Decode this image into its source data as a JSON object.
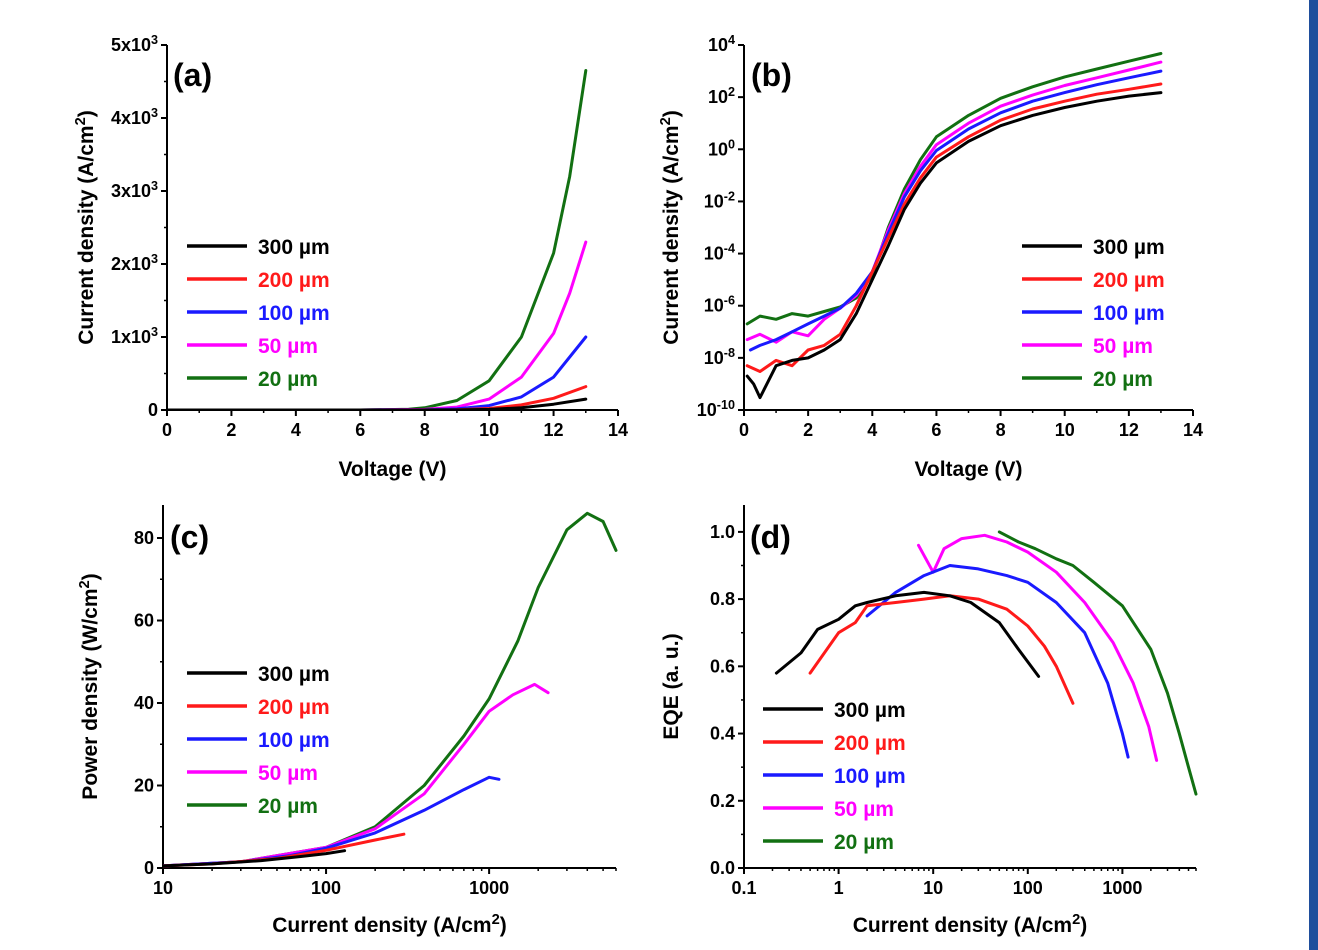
{
  "colors": {
    "300 µm": "#000000",
    "200 µm": "#ff1a1a",
    "100 µm": "#1a1aff",
    "50 µm": "#ff00ff",
    "20 µm": "#127012",
    "accent_bar": "#1f4e9c"
  },
  "chart_data": [
    {
      "panel": "(a)",
      "type": "line",
      "xlabel": "Voltage (V)",
      "ylabel": "Current density (A/cm²)",
      "xlim": [
        0,
        14
      ],
      "ylim": [
        0,
        5000
      ],
      "xticks": [
        "0",
        "2",
        "4",
        "6",
        "8",
        "10",
        "12",
        "14"
      ],
      "yticks": [
        "0",
        "1x10³",
        "2x10³",
        "3x10³",
        "4x10³",
        "5x10³"
      ],
      "legend_position": "center-left",
      "series": [
        {
          "name": "300 µm",
          "x": [
            0,
            6,
            8,
            9,
            10,
            11,
            12,
            13
          ],
          "y": [
            0,
            0,
            0,
            2,
            8,
            30,
            80,
            150
          ]
        },
        {
          "name": "200 µm",
          "x": [
            0,
            6,
            8,
            9,
            10,
            11,
            12,
            13
          ],
          "y": [
            0,
            0,
            1,
            4,
            20,
            70,
            160,
            320
          ]
        },
        {
          "name": "100 µm",
          "x": [
            0,
            6,
            8,
            9,
            10,
            11,
            12,
            13
          ],
          "y": [
            0,
            0,
            3,
            15,
            60,
            180,
            450,
            1000
          ]
        },
        {
          "name": "50 µm",
          "x": [
            0,
            6,
            8,
            9,
            10,
            11,
            12,
            12.5,
            13
          ],
          "y": [
            0,
            0,
            8,
            40,
            150,
            450,
            1050,
            1600,
            2300
          ]
        },
        {
          "name": "20 µm",
          "x": [
            0,
            6,
            7.5,
            8,
            9,
            10,
            11,
            12,
            12.5,
            13
          ],
          "y": [
            0,
            0,
            10,
            30,
            130,
            400,
            1000,
            2150,
            3200,
            4650
          ]
        }
      ]
    },
    {
      "panel": "(b)",
      "type": "line",
      "xlabel": "Voltage (V)",
      "ylabel": "Current density (A/cm²)",
      "xlim": [
        0,
        14
      ],
      "ylim": [
        1e-10,
        10000
      ],
      "yscale": "log",
      "xticks": [
        "0",
        "2",
        "4",
        "6",
        "8",
        "10",
        "12",
        "14"
      ],
      "yticks": [
        "10⁻¹⁰",
        "10⁻⁸",
        "10⁻⁶",
        "10⁻⁴",
        "10⁻²",
        "10⁰",
        "10²",
        "10⁴"
      ],
      "legend_position": "center-right",
      "series": [
        {
          "name": "300 µm",
          "x": [
            0.1,
            0.3,
            0.5,
            1,
            1.5,
            2,
            2.5,
            3,
            3.5,
            4,
            4.5,
            5,
            5.5,
            6,
            7,
            8,
            9,
            10,
            11,
            12,
            13
          ],
          "y": [
            2e-09,
            1e-09,
            3e-10,
            5e-09,
            8e-09,
            1e-08,
            2e-08,
            5e-08,
            5e-07,
            1e-05,
            0.0002,
            0.005,
            0.05,
            0.3,
            2,
            8,
            20,
            40,
            70,
            110,
            150
          ]
        },
        {
          "name": "200 µm",
          "x": [
            0.1,
            0.5,
            1,
            1.5,
            2,
            2.5,
            3,
            3.5,
            4,
            4.5,
            5,
            5.5,
            6,
            7,
            8,
            9,
            10,
            11,
            12,
            13
          ],
          "y": [
            5e-09,
            3e-09,
            8e-09,
            5e-09,
            2e-08,
            3e-08,
            8e-08,
            1e-06,
            2e-05,
            0.0004,
            0.008,
            0.08,
            0.5,
            3,
            13,
            35,
            70,
            130,
            200,
            320
          ]
        },
        {
          "name": "100 µm",
          "x": [
            0.2,
            0.5,
            1,
            1.5,
            2,
            2.5,
            3,
            3.5,
            4,
            4.5,
            5,
            5.5,
            6,
            7,
            8,
            9,
            10,
            11,
            12,
            13
          ],
          "y": [
            2e-08,
            3e-08,
            5e-08,
            1e-07,
            2e-07,
            4e-07,
            8e-07,
            3e-06,
            2e-05,
            0.0006,
            0.015,
            0.15,
            0.9,
            6,
            25,
            70,
            150,
            300,
            550,
            1000
          ]
        },
        {
          "name": "50 µm",
          "x": [
            0.1,
            0.5,
            1,
            1.5,
            2,
            2.5,
            3,
            3.5,
            4,
            4.5,
            5,
            5.5,
            6,
            7,
            8,
            9,
            10,
            11,
            12,
            13
          ],
          "y": [
            5e-08,
            8e-08,
            4e-08,
            1e-07,
            7e-08,
            3e-07,
            8e-07,
            2.5e-06,
            2e-05,
            0.0008,
            0.02,
            0.22,
            1.5,
            10,
            45,
            120,
            280,
            550,
            1100,
            2200
          ]
        },
        {
          "name": "20 µm",
          "x": [
            0.1,
            0.5,
            1,
            1.5,
            2,
            2.5,
            3,
            3.5,
            4,
            4.5,
            5,
            5.5,
            6,
            7,
            8,
            9,
            10,
            11,
            12,
            13
          ],
          "y": [
            2e-07,
            4e-07,
            3e-07,
            5e-07,
            4e-07,
            6e-07,
            9e-07,
            2e-06,
            1.5e-05,
            0.001,
            0.03,
            0.4,
            3,
            20,
            90,
            250,
            600,
            1200,
            2400,
            4700
          ]
        }
      ]
    },
    {
      "panel": "(c)",
      "type": "line",
      "xlabel": "Current density (A/cm²)",
      "ylabel": "Power density (W/cm²)",
      "xscale": "log",
      "xlim": [
        10,
        6000
      ],
      "ylim": [
        0,
        88
      ],
      "xticks": [
        "10",
        "100",
        "1000"
      ],
      "yticks": [
        "0",
        "20",
        "40",
        "60",
        "80"
      ],
      "legend_position": "center-left",
      "series": [
        {
          "name": "300 µm",
          "x": [
            10,
            20,
            40,
            70,
            100,
            130
          ],
          "y": [
            0.5,
            1,
            1.8,
            2.8,
            3.5,
            4.2
          ]
        },
        {
          "name": "200 µm",
          "x": [
            10,
            20,
            50,
            100,
            200,
            300
          ],
          "y": [
            0.5,
            1,
            2.3,
            4.3,
            6.8,
            8.2
          ]
        },
        {
          "name": "100 µm",
          "x": [
            10,
            30,
            60,
            100,
            200,
            400,
            700,
            1000,
            1150
          ],
          "y": [
            0.5,
            1.5,
            3,
            4.8,
            8.5,
            14,
            19,
            22,
            21.5
          ]
        },
        {
          "name": "50 µm",
          "x": [
            10,
            30,
            100,
            200,
            400,
            700,
            1000,
            1400,
            1900,
            2300
          ],
          "y": [
            0.5,
            1.5,
            5,
            9.5,
            18,
            30,
            38,
            42,
            44.5,
            42.5
          ]
        },
        {
          "name": "20 µm",
          "x": [
            10,
            30,
            100,
            200,
            400,
            700,
            1000,
            1500,
            2000,
            3000,
            4000,
            5000,
            6000
          ],
          "y": [
            0.5,
            1.5,
            5,
            10,
            20,
            32,
            41,
            55,
            68,
            82,
            86,
            84,
            77
          ]
        }
      ]
    },
    {
      "panel": "(d)",
      "type": "line",
      "xlabel": "Current density (A/cm²)",
      "ylabel": "EQE (a. u.)",
      "xscale": "log",
      "xlim": [
        0.1,
        6000
      ],
      "ylim": [
        0,
        1.08
      ],
      "xticks": [
        "0.1",
        "1",
        "10",
        "100",
        "1000"
      ],
      "yticks": [
        "0.0",
        "0.2",
        "0.4",
        "0.6",
        "0.8",
        "1.0"
      ],
      "legend_position": "bottom-left",
      "series": [
        {
          "name": "300 µm",
          "x": [
            0.22,
            0.4,
            0.6,
            1,
            1.5,
            2,
            4,
            8,
            15,
            25,
            50,
            80,
            130
          ],
          "y": [
            0.58,
            0.64,
            0.71,
            0.74,
            0.78,
            0.79,
            0.81,
            0.82,
            0.81,
            0.79,
            0.73,
            0.65,
            0.57
          ]
        },
        {
          "name": "200 µm",
          "x": [
            0.5,
            1,
            1.5,
            2,
            4,
            8,
            15,
            30,
            60,
            100,
            150,
            200,
            300
          ],
          "y": [
            0.58,
            0.7,
            0.73,
            0.78,
            0.79,
            0.8,
            0.81,
            0.8,
            0.77,
            0.72,
            0.66,
            0.6,
            0.49
          ]
        },
        {
          "name": "100 µm",
          "x": [
            2,
            4,
            8,
            15,
            30,
            60,
            100,
            200,
            400,
            700,
            1000,
            1150
          ],
          "y": [
            0.75,
            0.82,
            0.87,
            0.9,
            0.89,
            0.87,
            0.85,
            0.79,
            0.7,
            0.55,
            0.4,
            0.33
          ]
        },
        {
          "name": "50 µm",
          "x": [
            7,
            10,
            13,
            20,
            35,
            60,
            100,
            200,
            400,
            800,
            1300,
            1900,
            2300
          ],
          "y": [
            0.96,
            0.88,
            0.95,
            0.98,
            0.99,
            0.97,
            0.94,
            0.88,
            0.79,
            0.67,
            0.55,
            0.42,
            0.32
          ]
        },
        {
          "name": "20 µm",
          "x": [
            50,
            80,
            120,
            200,
            300,
            500,
            1000,
            2000,
            3000,
            4000,
            5000,
            6000
          ],
          "y": [
            1.0,
            0.97,
            0.95,
            0.92,
            0.9,
            0.85,
            0.78,
            0.65,
            0.52,
            0.4,
            0.3,
            0.22
          ]
        }
      ]
    }
  ]
}
